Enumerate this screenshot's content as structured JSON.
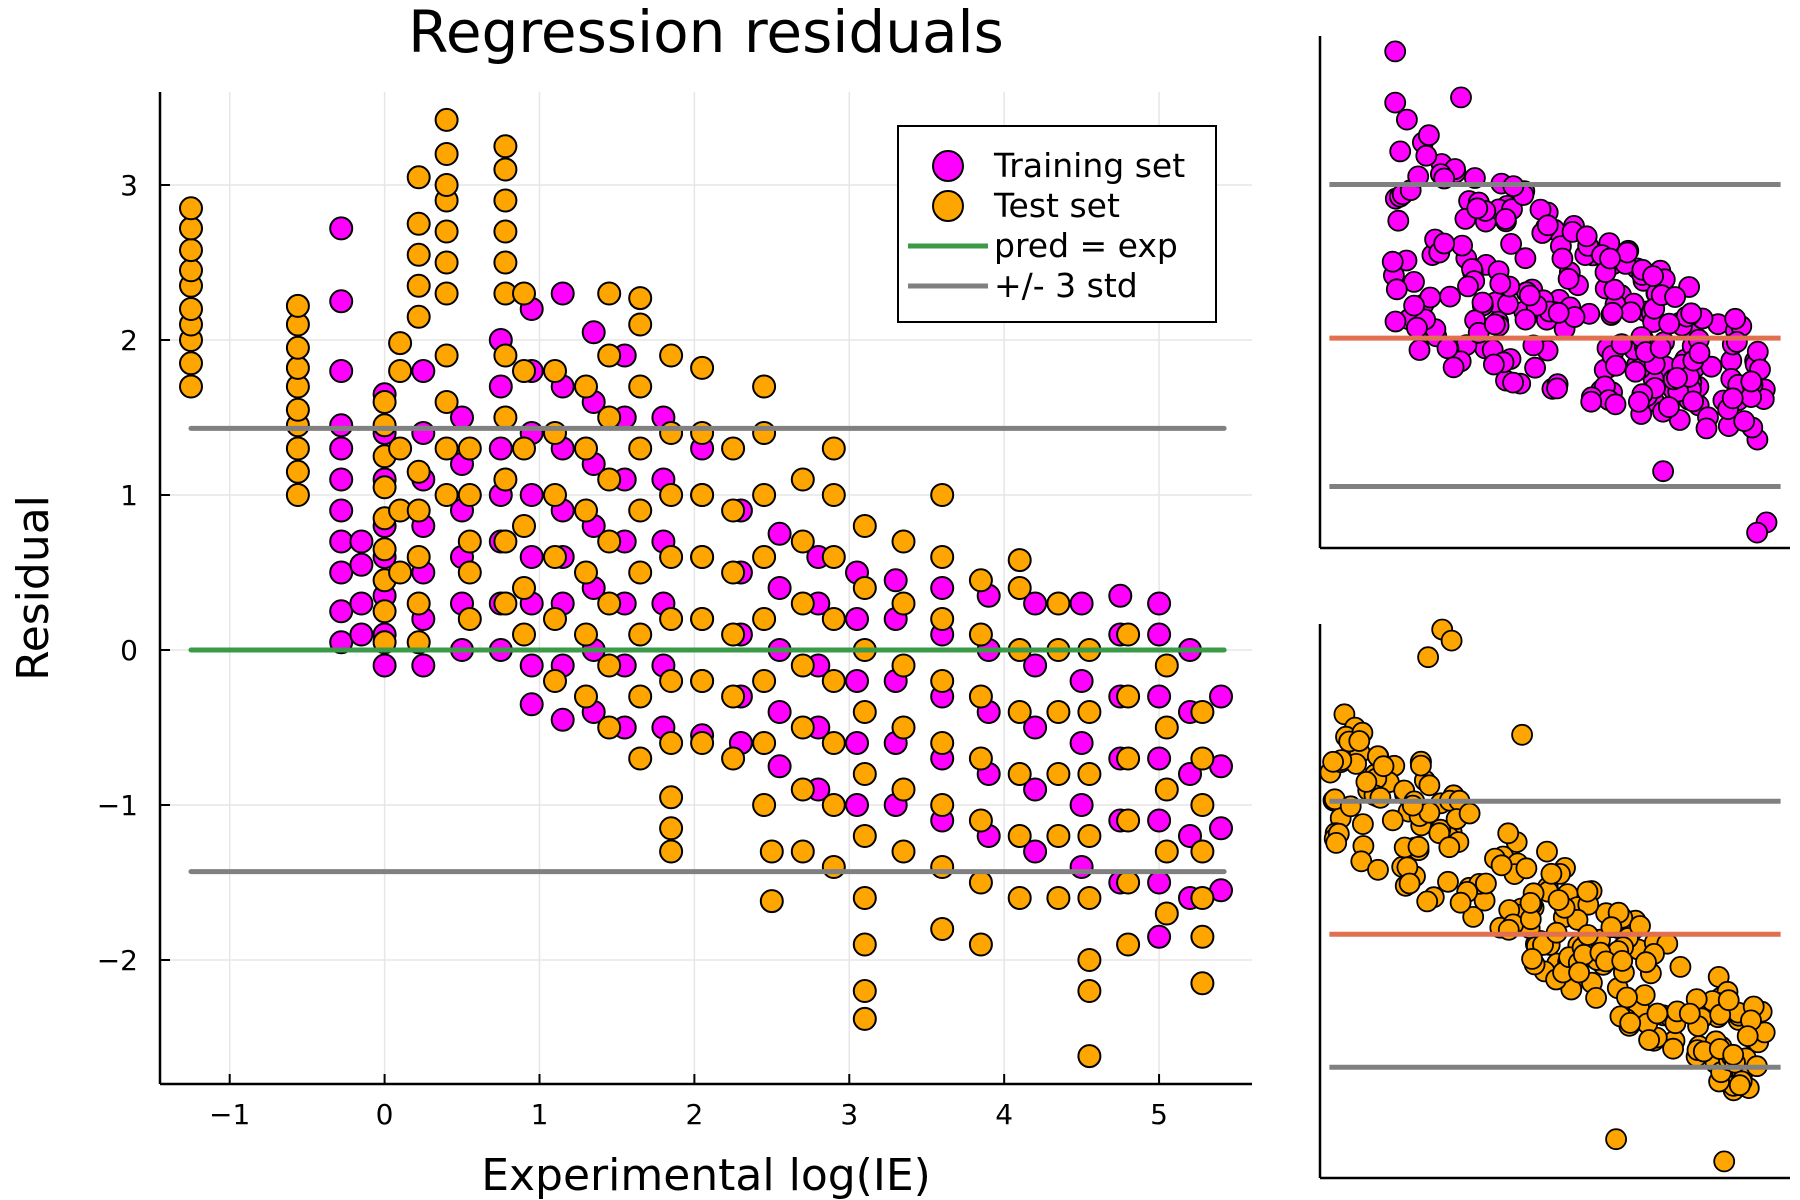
{
  "chart_data": [
    {
      "type": "scatter",
      "title": "Regression residuals",
      "xlabel": "Experimental log(IE)",
      "ylabel": "Residual",
      "xlim": [
        -1.45,
        5.6
      ],
      "ylim": [
        -2.8,
        3.6
      ],
      "xticks": [
        -1,
        0,
        1,
        2,
        3,
        4,
        5
      ],
      "xtick_labels": [
        "−1",
        "0",
        "1",
        "2",
        "3",
        "4",
        "5"
      ],
      "yticks": [
        -2,
        -1,
        0,
        1,
        2,
        3
      ],
      "ytick_labels": [
        "−2",
        "−1",
        "0",
        "1",
        "2",
        "3"
      ],
      "grid": true,
      "legend_position": "top-right",
      "series": [
        {
          "name": "Training set",
          "kind": "points",
          "color": "#ff00ff",
          "clusters": [
            {
              "x": -0.28,
              "y": [
                0.05,
                0.25,
                0.5,
                0.7,
                0.9,
                1.1,
                1.3,
                1.45,
                1.8,
                2.25,
                2.72
              ]
            },
            {
              "x": -0.15,
              "y": [
                0.1,
                0.3,
                0.55,
                0.7
              ]
            },
            {
              "x": 0.0,
              "y": [
                -0.1,
                0.1,
                0.35,
                0.6,
                0.8,
                1.1,
                1.4,
                1.65
              ]
            },
            {
              "x": 0.25,
              "y": [
                -0.1,
                0.2,
                0.5,
                0.8,
                1.1,
                1.4,
                1.8
              ]
            },
            {
              "x": 0.5,
              "y": [
                0.0,
                0.3,
                0.6,
                0.9,
                1.2,
                1.5
              ]
            },
            {
              "x": 0.75,
              "y": [
                0.0,
                0.3,
                0.7,
                1.0,
                1.3,
                1.7,
                2.0
              ]
            },
            {
              "x": 0.95,
              "y": [
                -0.35,
                -0.1,
                0.3,
                0.6,
                1.0,
                1.4,
                1.8,
                2.2
              ]
            },
            {
              "x": 1.15,
              "y": [
                -0.45,
                -0.1,
                0.3,
                0.6,
                0.9,
                1.3,
                1.7,
                2.3
              ]
            },
            {
              "x": 1.35,
              "y": [
                -0.4,
                0.0,
                0.4,
                0.8,
                1.2,
                1.6,
                2.05
              ]
            },
            {
              "x": 1.55,
              "y": [
                -0.5,
                -0.1,
                0.3,
                0.7,
                1.1,
                1.5,
                1.9
              ]
            },
            {
              "x": 1.8,
              "y": [
                -0.5,
                -0.1,
                0.3,
                0.7,
                1.1,
                1.5
              ]
            },
            {
              "x": 2.05,
              "y": [
                -0.55,
                -0.2,
                0.2,
                0.6,
                1.0,
                1.3
              ]
            },
            {
              "x": 2.3,
              "y": [
                -0.6,
                -0.3,
                0.1,
                0.5,
                0.9
              ]
            },
            {
              "x": 2.55,
              "y": [
                -0.75,
                -0.4,
                0.0,
                0.4,
                0.75
              ]
            },
            {
              "x": 2.8,
              "y": [
                -0.9,
                -0.5,
                -0.1,
                0.3,
                0.6
              ]
            },
            {
              "x": 3.05,
              "y": [
                -1.0,
                -0.6,
                -0.2,
                0.2,
                0.5
              ]
            },
            {
              "x": 3.3,
              "y": [
                -1.0,
                -0.6,
                -0.2,
                0.2,
                0.45
              ]
            },
            {
              "x": 3.6,
              "y": [
                -1.1,
                -0.7,
                -0.3,
                0.1,
                0.4
              ]
            },
            {
              "x": 3.9,
              "y": [
                -1.2,
                -0.8,
                -0.4,
                0.0,
                0.35
              ]
            },
            {
              "x": 4.2,
              "y": [
                -1.3,
                -0.9,
                -0.5,
                -0.1,
                0.3
              ]
            },
            {
              "x": 4.5,
              "y": [
                -1.4,
                -1.0,
                -0.6,
                -0.2,
                0.3
              ]
            },
            {
              "x": 4.75,
              "y": [
                -1.5,
                -1.1,
                -0.7,
                -0.3,
                0.1,
                0.35
              ]
            },
            {
              "x": 5.0,
              "y": [
                -1.85,
                -1.5,
                -1.1,
                -0.7,
                -0.3,
                0.1,
                0.3
              ]
            },
            {
              "x": 5.2,
              "y": [
                -1.6,
                -1.2,
                -0.8,
                -0.4,
                0.0
              ]
            },
            {
              "x": 5.4,
              "y": [
                -1.55,
                -1.15,
                -0.75,
                -0.3
              ]
            }
          ]
        },
        {
          "name": "Test set",
          "kind": "points",
          "color": "#ffa500",
          "clusters": [
            {
              "x": -1.25,
              "y": [
                1.7,
                1.85,
                2.0,
                2.1,
                2.2,
                2.35,
                2.45,
                2.58,
                2.72,
                2.85
              ]
            },
            {
              "x": -0.56,
              "y": [
                1.0,
                1.15,
                1.3,
                1.45,
                1.55,
                1.7,
                1.82,
                1.95,
                2.1,
                2.22
              ]
            },
            {
              "x": 0.0,
              "y": [
                0.05,
                0.25,
                0.45,
                0.65,
                0.85,
                1.05,
                1.25,
                1.45,
                1.6
              ]
            },
            {
              "x": 0.1,
              "y": [
                0.5,
                0.9,
                1.3,
                1.8,
                1.98
              ]
            },
            {
              "x": 0.22,
              "y": [
                0.05,
                0.3,
                0.6,
                0.9,
                1.15
              ]
            },
            {
              "x": 0.22,
              "y": [
                2.15,
                2.35,
                2.55,
                2.75,
                3.05
              ]
            },
            {
              "x": 0.4,
              "y": [
                1.0,
                1.3,
                1.6,
                1.9,
                2.3,
                2.5,
                2.7,
                2.9,
                3.0,
                3.2,
                3.42
              ]
            },
            {
              "x": 0.55,
              "y": [
                0.2,
                0.5,
                0.7,
                1.0,
                1.3
              ]
            },
            {
              "x": 0.78,
              "y": [
                0.3,
                0.7,
                1.1,
                1.5,
                1.9,
                2.3,
                2.5,
                2.7,
                2.9,
                3.1,
                3.25
              ]
            },
            {
              "x": 0.9,
              "y": [
                0.1,
                0.4,
                0.8,
                1.3,
                1.8,
                2.3
              ]
            },
            {
              "x": 1.1,
              "y": [
                -0.2,
                0.2,
                0.6,
                1.0,
                1.4,
                1.8
              ]
            },
            {
              "x": 1.3,
              "y": [
                -0.3,
                0.1,
                0.5,
                0.9,
                1.3,
                1.7
              ]
            },
            {
              "x": 1.45,
              "y": [
                -0.5,
                -0.1,
                0.3,
                0.7,
                1.1,
                1.5,
                1.9,
                2.3
              ]
            },
            {
              "x": 1.65,
              "y": [
                -0.7,
                -0.3,
                0.1,
                0.5,
                0.9,
                1.3,
                1.7,
                2.1,
                2.27
              ]
            },
            {
              "x": 1.85,
              "y": [
                -1.3,
                -1.15,
                -0.95,
                -0.6,
                -0.2,
                0.2,
                0.6,
                1.0,
                1.4,
                1.9
              ]
            },
            {
              "x": 2.05,
              "y": [
                -0.6,
                -0.2,
                0.2,
                0.6,
                1.0,
                1.4,
                1.82
              ]
            },
            {
              "x": 2.25,
              "y": [
                -0.7,
                -0.3,
                0.1,
                0.5,
                0.9,
                1.3
              ]
            },
            {
              "x": 2.45,
              "y": [
                -1.0,
                -0.6,
                -0.2,
                0.2,
                0.6,
                1.0,
                1.4,
                1.7
              ]
            },
            {
              "x": 2.5,
              "y": [
                -1.62,
                -1.3
              ]
            },
            {
              "x": 2.7,
              "y": [
                -1.3,
                -0.9,
                -0.5,
                -0.1,
                0.3,
                0.7,
                1.1
              ]
            },
            {
              "x": 2.9,
              "y": [
                -1.4,
                -1.0,
                -0.6,
                -0.2,
                0.2,
                0.6,
                1.0,
                1.3
              ]
            },
            {
              "x": 3.1,
              "y": [
                -2.38,
                -2.2,
                -1.9,
                -1.6,
                -1.2,
                -0.8,
                -0.4,
                0.0,
                0.4,
                0.8
              ]
            },
            {
              "x": 3.35,
              "y": [
                -1.3,
                -0.9,
                -0.5,
                -0.1,
                0.3,
                0.7
              ]
            },
            {
              "x": 3.6,
              "y": [
                -1.8,
                -1.4,
                -1.0,
                -0.6,
                -0.2,
                0.2,
                0.6,
                1.0
              ]
            },
            {
              "x": 3.85,
              "y": [
                -1.9,
                -1.5,
                -1.1,
                -0.7,
                -0.3,
                0.1,
                0.45
              ]
            },
            {
              "x": 4.1,
              "y": [
                -1.6,
                -1.2,
                -0.8,
                -0.4,
                0.0,
                0.4,
                0.58
              ]
            },
            {
              "x": 4.35,
              "y": [
                -1.6,
                -1.2,
                -0.8,
                -0.4,
                0.0,
                0.3
              ]
            },
            {
              "x": 4.55,
              "y": [
                -2.62,
                -2.2,
                -2.0,
                -1.6,
                -1.2,
                -0.8,
                -0.4,
                0.0
              ]
            },
            {
              "x": 4.8,
              "y": [
                -1.9,
                -1.5,
                -1.1,
                -0.7,
                -0.3,
                0.1
              ]
            },
            {
              "x": 5.05,
              "y": [
                -1.7,
                -1.3,
                -0.9,
                -0.5,
                -0.1
              ]
            },
            {
              "x": 5.28,
              "y": [
                -2.15,
                -1.85,
                -1.6,
                -1.3,
                -1.0,
                -0.7,
                -0.4
              ]
            }
          ]
        },
        {
          "name": "pred = exp",
          "kind": "hline",
          "color": "#3a9a47",
          "y": 0.0,
          "x": [
            -1.25,
            5.42
          ]
        },
        {
          "name": "+/- 3 std",
          "kind": "hline",
          "color": "#808080",
          "y": 1.43,
          "x": [
            -1.25,
            5.42
          ]
        },
        {
          "kind": "hline",
          "color": "#808080",
          "y": -1.43,
          "x": [
            -1.25,
            5.42
          ]
        }
      ]
    },
    {
      "type": "scatter",
      "title": "",
      "xlabel": "",
      "ylabel": "",
      "ticks": false,
      "xlim": [
        0,
        1
      ],
      "ylim": [
        0,
        1
      ],
      "series": [
        {
          "kind": "points",
          "color": "#ff00ff",
          "trend": {
            "x": [
              0.15,
              0.95
            ],
            "upper": [
              0.86,
              0.42
            ],
            "lower": [
              0.38,
              0.2
            ]
          },
          "point_count": 260,
          "outliers": [
            [
              0.16,
              0.97
            ],
            [
              0.16,
              0.87
            ],
            [
              0.3,
              0.88
            ],
            [
              0.95,
              0.05
            ],
            [
              0.93,
              0.03
            ],
            [
              0.73,
              0.15
            ]
          ]
        },
        {
          "kind": "hline",
          "color": "#e07050",
          "y": 0.41,
          "x": [
            0.02,
            0.98
          ]
        },
        {
          "kind": "hline",
          "color": "#808080",
          "y": 0.71,
          "x": [
            0.02,
            0.98
          ]
        },
        {
          "kind": "hline",
          "color": "#808080",
          "y": 0.12,
          "x": [
            0.02,
            0.98
          ]
        }
      ]
    },
    {
      "type": "scatter",
      "title": "",
      "xlabel": "",
      "ylabel": "",
      "ticks": false,
      "xlim": [
        0,
        1
      ],
      "ylim": [
        0,
        1
      ],
      "series": [
        {
          "kind": "points",
          "color": "#ffa500",
          "trend": {
            "x": [
              0.02,
              0.95
            ],
            "upper": [
              0.88,
              0.3
            ],
            "lower": [
              0.6,
              0.12
            ]
          },
          "point_count": 240,
          "outliers": [
            [
              0.26,
              0.99
            ],
            [
              0.23,
              0.94
            ],
            [
              0.28,
              0.97
            ],
            [
              0.43,
              0.8
            ],
            [
              0.66,
              0.28
            ],
            [
              0.86,
              0.03
            ],
            [
              0.63,
              0.07
            ]
          ]
        },
        {
          "kind": "hline",
          "color": "#e07050",
          "y": 0.44,
          "x": [
            0.02,
            0.98
          ]
        },
        {
          "kind": "hline",
          "color": "#808080",
          "y": 0.68,
          "x": [
            0.02,
            0.98
          ]
        },
        {
          "kind": "hline",
          "color": "#808080",
          "y": 0.2,
          "x": [
            0.02,
            0.98
          ]
        }
      ]
    }
  ]
}
